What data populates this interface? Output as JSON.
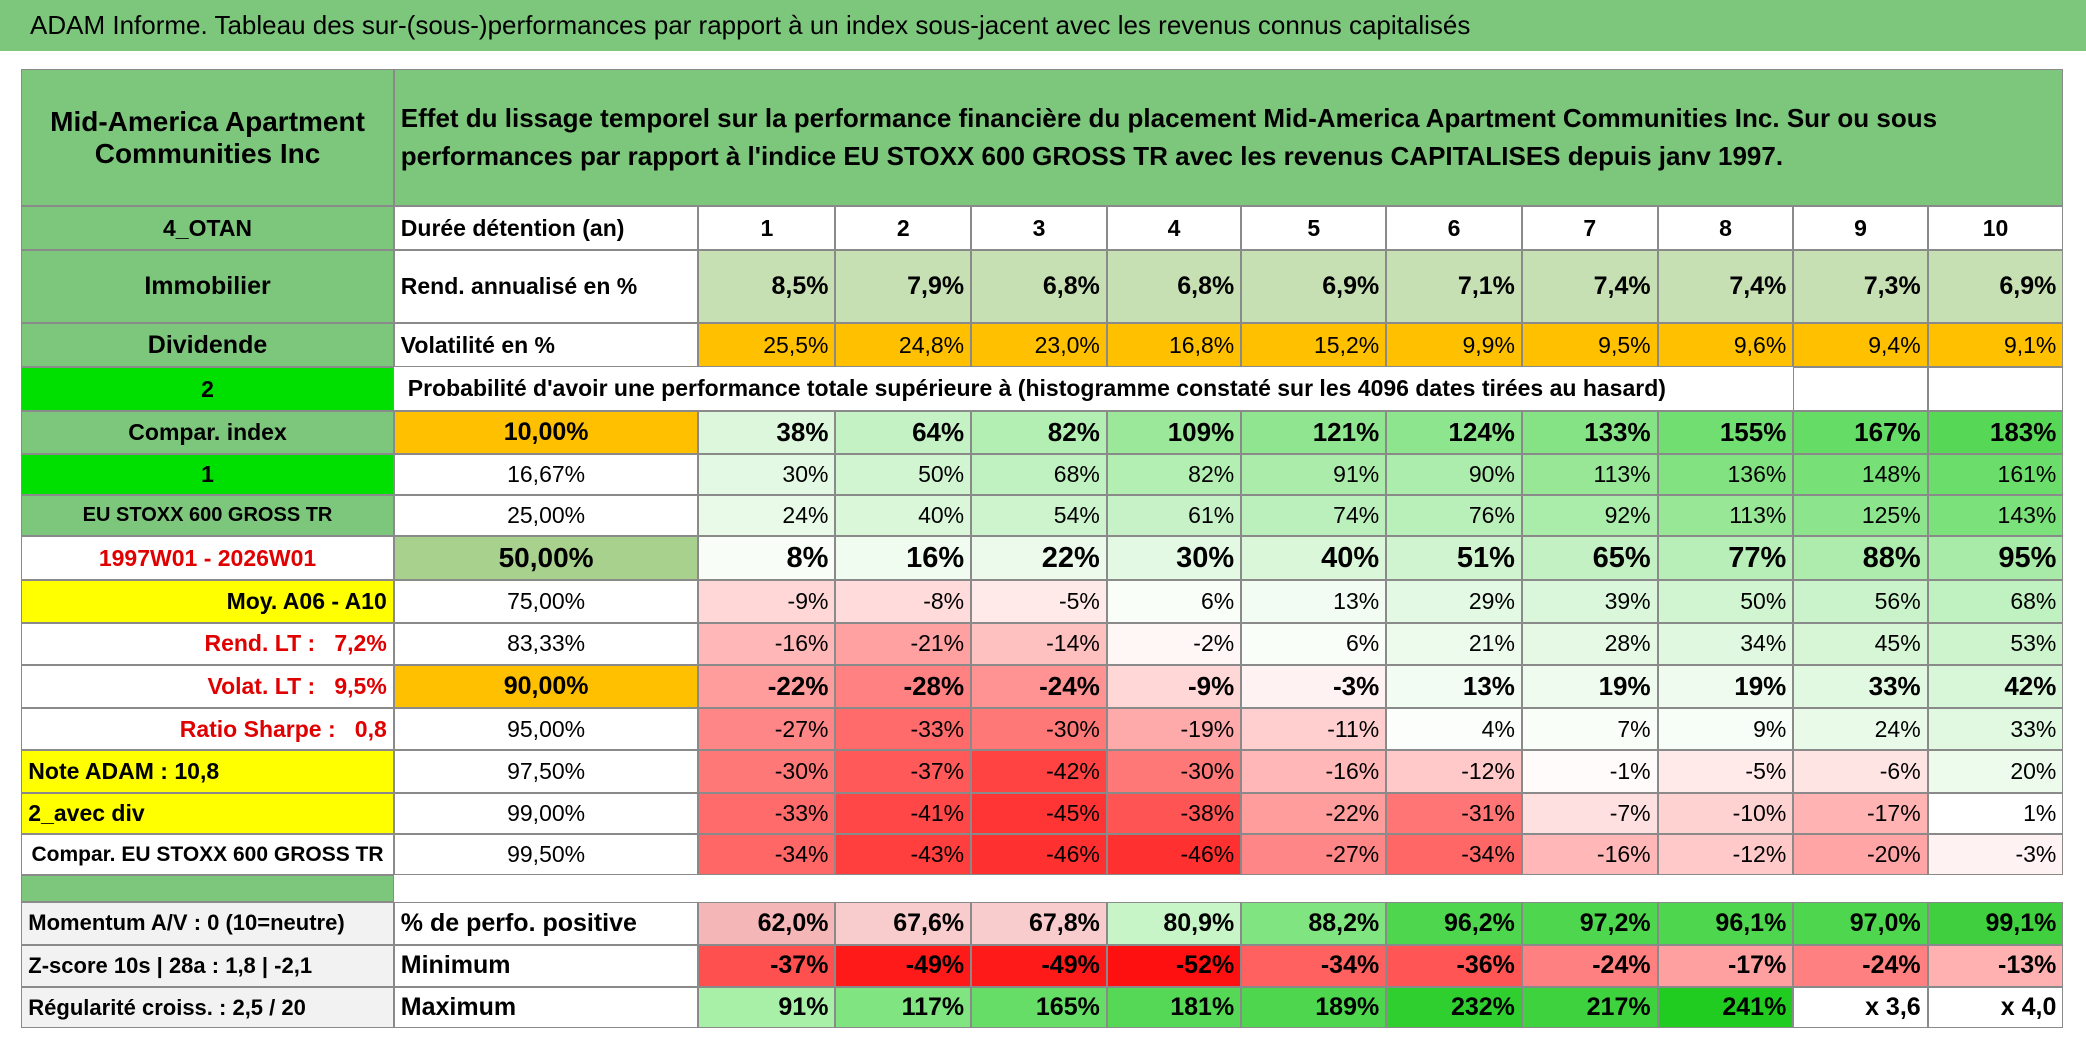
{
  "title": "ADAM Informe. Tableau des sur-(sous-)performances par rapport à un index sous-jacent avec les revenus connus capitalisés",
  "header": {
    "left": "Mid-America Apartment Communities Inc",
    "description": "Effet du lissage temporel sur la performance financière du placement Mid-America Apartment Communities Inc. Sur ou sous performances par rapport à l'indice EU STOXX 600 GROSS TR avec les revenus CAPITALISES depuis janv 1997."
  },
  "rows": [
    {
      "label": "4_OTAN",
      "column_b": "Durée détention (an)",
      "values": [
        1,
        2,
        3,
        4,
        5,
        6,
        7,
        8,
        9,
        10
      ]
    },
    {
      "label": "Immobilier",
      "column_b": "Rend. annualisé en %",
      "values": [
        "8,5%",
        "7,9%",
        "6,8%",
        "6,8%",
        "6,9%",
        "7,1%",
        "7,4%",
        "7,4%",
        "7,3%",
        "6,9%"
      ]
    },
    {
      "label": "Dividende",
      "column_b": "Volatilité en %",
      "values": [
        "25,5%",
        "24,8%",
        "23,0%",
        "16,8%",
        "15,2%",
        "9,9%",
        "9,5%",
        "9,6%",
        "9,4%",
        "9,1%"
      ]
    },
    {
      "label": "2",
      "text": "Probabilité d'avoir une performance totale supérieure à (histogramme constaté sur les 4096 dates tirées au hasard)"
    },
    {
      "label": "Compar. index",
      "column_b": "10,00%",
      "values": [
        "38%",
        "64%",
        "82%",
        "109%",
        "121%",
        "124%",
        "133%",
        "155%",
        "167%",
        "183%"
      ]
    },
    {
      "label": "1",
      "column_b": "16,67%",
      "values": [
        "30%",
        "50%",
        "68%",
        "82%",
        "91%",
        "90%",
        "113%",
        "136%",
        "148%",
        "161%"
      ]
    },
    {
      "label": "EU STOXX 600 GROSS TR",
      "column_b": "25,00%",
      "values": [
        "24%",
        "40%",
        "54%",
        "61%",
        "74%",
        "76%",
        "92%",
        "113%",
        "125%",
        "143%"
      ]
    },
    {
      "label": "1997W01 - 2026W01",
      "column_b": "50,00%",
      "values": [
        "8%",
        "16%",
        "22%",
        "30%",
        "40%",
        "51%",
        "65%",
        "77%",
        "88%",
        "95%"
      ]
    },
    {
      "label": "Moy. A06 - A10",
      "column_b": "75,00%",
      "values": [
        "-9%",
        "-8%",
        "-5%",
        "6%",
        "13%",
        "29%",
        "39%",
        "50%",
        "56%",
        "68%"
      ]
    },
    {
      "label": "Rend. LT :   7,2%",
      "column_b": "83,33%",
      "values": [
        "-16%",
        "-21%",
        "-14%",
        "-2%",
        "6%",
        "21%",
        "28%",
        "34%",
        "45%",
        "53%"
      ]
    },
    {
      "label": "Volat. LT :   9,5%",
      "column_b": "90,00%",
      "values": [
        "-22%",
        "-28%",
        "-24%",
        "-9%",
        "-3%",
        "13%",
        "19%",
        "19%",
        "33%",
        "42%"
      ]
    },
    {
      "label": "Ratio Sharpe :   0,8",
      "column_b": "95,00%",
      "values": [
        "-27%",
        "-33%",
        "-30%",
        "-19%",
        "-11%",
        "4%",
        "7%",
        "9%",
        "24%",
        "33%"
      ]
    },
    {
      "label": "Note ADAM : 10,8",
      "column_b": "97,50%",
      "values": [
        "-30%",
        "-37%",
        "-42%",
        "-30%",
        "-16%",
        "-12%",
        "-1%",
        "-5%",
        "-6%",
        "20%"
      ]
    },
    {
      "label": "2_avec div",
      "column_b": "99,00%",
      "values": [
        "-33%",
        "-41%",
        "-45%",
        "-38%",
        "-22%",
        "-31%",
        "-7%",
        "-10%",
        "-17%",
        "1%"
      ]
    },
    {
      "label": "Compar. EU STOXX 600 GROSS TR",
      "column_b": "99,50%",
      "values": [
        "-34%",
        "-43%",
        "-46%",
        "-46%",
        "-27%",
        "-34%",
        "-16%",
        "-12%",
        "-20%",
        "-3%"
      ]
    }
  ],
  "summary_rows": [
    {
      "label": "Momentum A/V : 0 (10=neutre)",
      "column_b": "% de perfo. positive",
      "values": [
        "62,0%",
        "67,6%",
        "67,8%",
        "80,9%",
        "88,2%",
        "96,2%",
        "97,2%",
        "96,1%",
        "97,0%",
        "99,1%"
      ]
    },
    {
      "label": "Z-score 10s | 28a : 1,8 | -2,1",
      "column_b": "Minimum",
      "values": [
        "-37%",
        "-49%",
        "-49%",
        "-52%",
        "-34%",
        "-36%",
        "-24%",
        "-17%",
        "-24%",
        "-13%"
      ]
    },
    {
      "label": "Régularité croiss. : 2,5 / 20",
      "column_b": "Maximum",
      "values": [
        "91%",
        "117%",
        "165%",
        "181%",
        "189%",
        "232%",
        "217%",
        "241%",
        "x 3,6",
        "x 4,0"
      ]
    }
  ]
}
